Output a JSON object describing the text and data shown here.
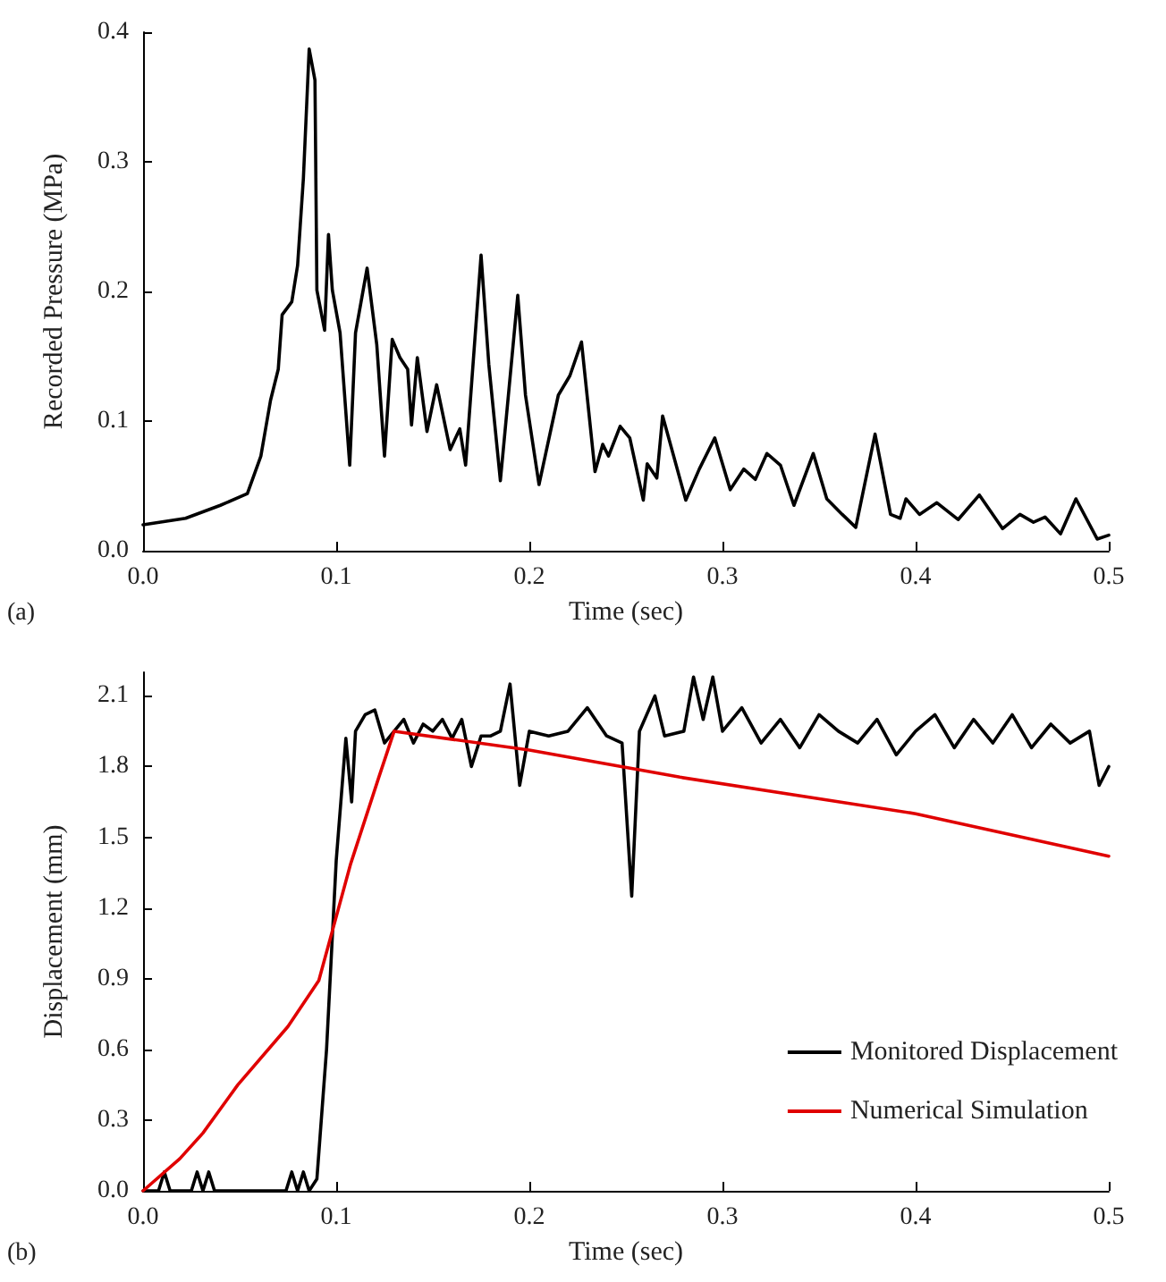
{
  "chart_data": [
    {
      "type": "line",
      "xlabel": "Time (sec)",
      "ylabel": "Recorded Pressure (MPa)",
      "annotations": [
        "(a)"
      ],
      "xlim": [
        0,
        0.5
      ],
      "ylim": [
        0,
        0.4
      ],
      "xticks": [
        {
          "value": 0,
          "label": "0.0"
        },
        {
          "value": 0.1,
          "label": "0.1"
        },
        {
          "value": 0.2,
          "label": "0.2"
        },
        {
          "value": 0.3,
          "label": "0.3"
        },
        {
          "value": 0.4,
          "label": "0.4"
        },
        {
          "value": 0.5,
          "label": "0.5"
        }
      ],
      "yticks": [
        {
          "value": 0,
          "label": "0.0"
        },
        {
          "value": 0.1,
          "label": "0.1"
        },
        {
          "value": 0.2,
          "label": "0.2"
        },
        {
          "value": 0.3,
          "label": "0.3"
        },
        {
          "value": 0.4,
          "label": "0.4"
        }
      ],
      "grid": false,
      "legend": false,
      "marker": "none",
      "line_style": "solid",
      "series": [
        {
          "color": "#000000",
          "x": [
            0,
            0.022,
            0.04,
            0.054,
            0.061,
            0.066,
            0.07,
            0.072,
            0.077,
            0.08,
            0.083,
            0.086,
            0.089,
            0.09,
            0.094,
            0.096,
            0.098,
            0.102,
            0.107,
            0.11,
            0.116,
            0.121,
            0.125,
            0.129,
            0.133,
            0.137,
            0.139,
            0.142,
            0.147,
            0.152,
            0.159,
            0.164,
            0.167,
            0.175,
            0.179,
            0.185,
            0.194,
            0.198,
            0.205,
            0.215,
            0.221,
            0.227,
            0.234,
            0.238,
            0.241,
            0.247,
            0.252,
            0.259,
            0.261,
            0.266,
            0.269,
            0.281,
            0.288,
            0.296,
            0.304,
            0.311,
            0.317,
            0.323,
            0.33,
            0.337,
            0.347,
            0.354,
            0.362,
            0.369,
            0.379,
            0.387,
            0.392,
            0.395,
            0.402,
            0.411,
            0.422,
            0.433,
            0.445,
            0.454,
            0.461,
            0.467,
            0.475,
            0.483,
            0.494,
            0.5
          ],
          "values": [
            0.02,
            0.025,
            0.035,
            0.044,
            0.073,
            0.116,
            0.14,
            0.182,
            0.192,
            0.22,
            0.287,
            0.387,
            0.363,
            0.201,
            0.17,
            0.244,
            0.201,
            0.168,
            0.066,
            0.168,
            0.218,
            0.159,
            0.073,
            0.163,
            0.149,
            0.14,
            0.097,
            0.149,
            0.092,
            0.128,
            0.078,
            0.094,
            0.066,
            0.228,
            0.144,
            0.054,
            0.197,
            0.12,
            0.051,
            0.12,
            0.135,
            0.161,
            0.061,
            0.082,
            0.073,
            0.096,
            0.087,
            0.039,
            0.067,
            0.056,
            0.104,
            0.039,
            0.063,
            0.087,
            0.047,
            0.063,
            0.055,
            0.075,
            0.066,
            0.035,
            0.075,
            0.04,
            0.028,
            0.018,
            0.09,
            0.028,
            0.025,
            0.04,
            0.028,
            0.037,
            0.024,
            0.043,
            0.017,
            0.028,
            0.022,
            0.026,
            0.013,
            0.04,
            0.009,
            0.012
          ]
        }
      ]
    },
    {
      "type": "line",
      "xlabel": "Time (sec)",
      "ylabel": "Displacement (mm)",
      "annotations": [
        "(b)"
      ],
      "xlim": [
        0,
        0.5
      ],
      "ylim": [
        0,
        2.2
      ],
      "xticks": [
        {
          "value": 0,
          "label": "0.0"
        },
        {
          "value": 0.1,
          "label": "0.1"
        },
        {
          "value": 0.2,
          "label": "0.2"
        },
        {
          "value": 0.3,
          "label": "0.3"
        },
        {
          "value": 0.4,
          "label": "0.4"
        },
        {
          "value": 0.5,
          "label": "0.5"
        }
      ],
      "yticks": [
        {
          "value": 0,
          "label": "0.0"
        },
        0.3,
        0.6,
        0.9,
        1.2,
        1.5,
        1.8,
        2.1
      ],
      "grid": false,
      "legend": "bottom right",
      "marker": "none",
      "line_style": "solid",
      "series": [
        {
          "name": "Monitored Displacement",
          "color": "#000000",
          "x": [
            0,
            0.008,
            0.011,
            0.014,
            0.025,
            0.028,
            0.031,
            0.034,
            0.037,
            0.06,
            0.074,
            0.077,
            0.08,
            0.083,
            0.086,
            0.09,
            0.095,
            0.1,
            0.105,
            0.108,
            0.11,
            0.115,
            0.12,
            0.125,
            0.13,
            0.135,
            0.14,
            0.145,
            0.15,
            0.155,
            0.16,
            0.165,
            0.17,
            0.175,
            0.18,
            0.185,
            0.19,
            0.195,
            0.2,
            0.21,
            0.22,
            0.23,
            0.24,
            0.248,
            0.253,
            0.257,
            0.265,
            0.27,
            0.28,
            0.285,
            0.29,
            0.295,
            0.3,
            0.31,
            0.32,
            0.33,
            0.34,
            0.35,
            0.36,
            0.37,
            0.38,
            0.39,
            0.4,
            0.41,
            0.42,
            0.43,
            0.44,
            0.45,
            0.46,
            0.47,
            0.48,
            0.49,
            0.495,
            0.5
          ],
          "values": [
            0,
            0,
            0.08,
            0,
            0,
            0.08,
            0,
            0.08,
            0,
            0,
            0,
            0.08,
            0,
            0.08,
            0,
            0.05,
            0.6,
            1.4,
            1.92,
            1.65,
            1.95,
            2.02,
            2.04,
            1.9,
            1.95,
            2.0,
            1.9,
            1.98,
            1.95,
            2.0,
            1.92,
            2.0,
            1.8,
            1.93,
            1.93,
            1.95,
            2.15,
            1.72,
            1.95,
            1.93,
            1.95,
            2.05,
            1.93,
            1.9,
            1.25,
            1.95,
            2.1,
            1.93,
            1.95,
            2.18,
            2.0,
            2.18,
            1.95,
            2.05,
            1.9,
            2.0,
            1.88,
            2.02,
            1.95,
            1.9,
            2.0,
            1.85,
            1.95,
            2.02,
            1.88,
            2.0,
            1.9,
            2.02,
            1.88,
            1.98,
            1.9,
            1.95,
            1.72,
            1.8
          ]
        },
        {
          "name": "Numerical Simulation",
          "color": "#e00000",
          "x": [
            0,
            0.019,
            0.031,
            0.049,
            0.075,
            0.091,
            0.1075,
            0.122,
            0.13,
            0.2,
            0.278,
            0.4,
            0.5
          ],
          "values": [
            0,
            0.136,
            0.245,
            0.449,
            0.697,
            0.892,
            1.388,
            1.753,
            1.95,
            1.87,
            1.755,
            1.6,
            1.42
          ]
        }
      ]
    }
  ]
}
